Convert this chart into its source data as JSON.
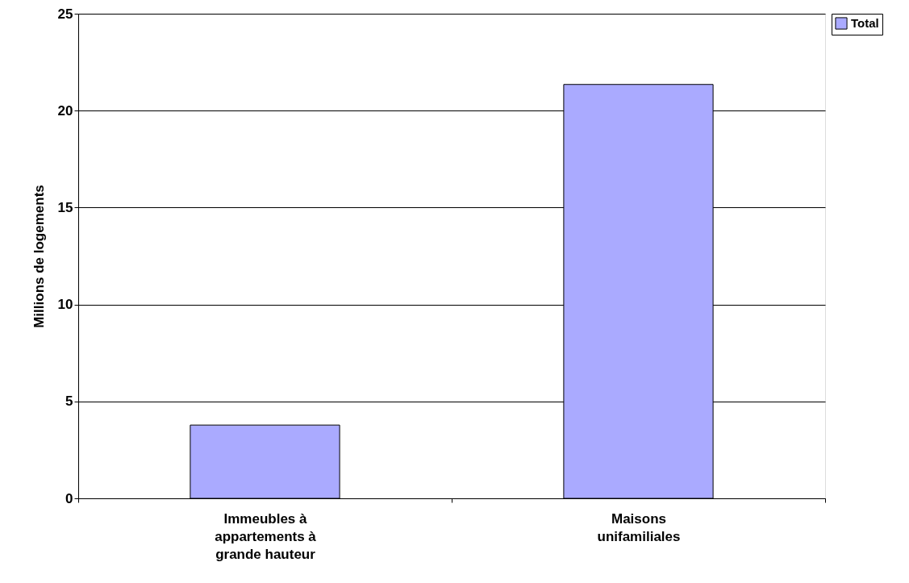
{
  "chart_data": {
    "type": "bar",
    "ylabel": "Millions de logements",
    "categories": [
      "Immeubles à appartements à grande hauteur",
      "Maisons unifamiliales"
    ],
    "series": [
      {
        "name": "Total",
        "color": "#aaaaff",
        "values": [
          3.78,
          21.35
        ]
      }
    ],
    "ylim": [
      0,
      25
    ],
    "yticks": [
      0,
      5,
      10,
      15,
      20,
      25
    ],
    "grid": "y",
    "legend": "right"
  }
}
